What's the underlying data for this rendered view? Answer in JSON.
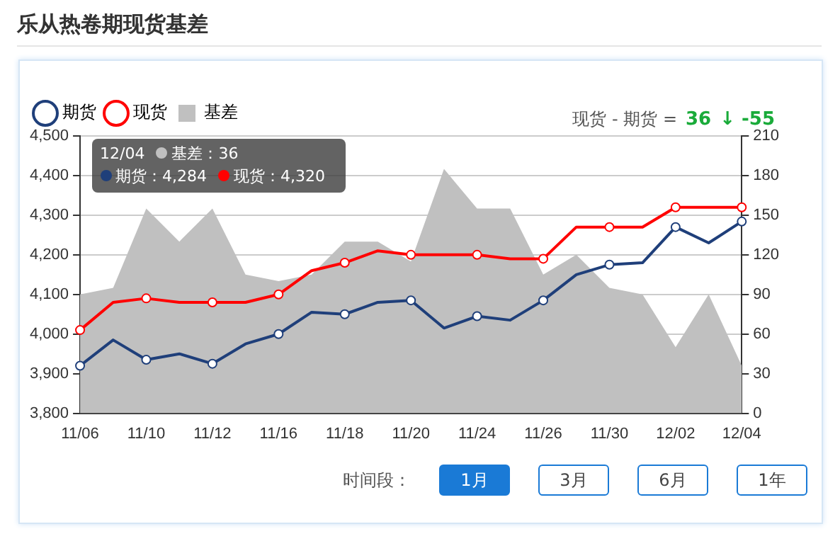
{
  "chart_data": {
    "type": "line",
    "title": "乐从热卷期现货基差",
    "categories": [
      "11/06",
      null,
      "11/10",
      null,
      "11/12",
      null,
      "11/16",
      null,
      "11/18",
      null,
      "11/20",
      null,
      "11/24",
      null,
      "11/26",
      null,
      "11/30",
      null,
      "12/02",
      null,
      "12/04"
    ],
    "series": [
      {
        "name": "期货",
        "color": "#1f3f7a",
        "values": [
          3920,
          3985,
          3935,
          3950,
          3925,
          3975,
          4000,
          4055,
          4050,
          4080,
          4085,
          4015,
          4045,
          4035,
          4085,
          4150,
          4175,
          4180,
          4270,
          4230,
          4284
        ]
      },
      {
        "name": "现货",
        "color": "#ff0000",
        "values": [
          4010,
          4080,
          4090,
          4080,
          4080,
          4080,
          4100,
          4160,
          4180,
          4210,
          4200,
          4200,
          4200,
          4190,
          4190,
          4270,
          4270,
          4270,
          4320,
          4320,
          4320
        ]
      },
      {
        "name": "基差",
        "type": "area",
        "axis": "y2",
        "color": "#c0c0c0",
        "marker": "none",
        "values": [
          90,
          95,
          155,
          130,
          155,
          105,
          100,
          105,
          130,
          130,
          115,
          185,
          155,
          155,
          105,
          120,
          95,
          90,
          50,
          90,
          36
        ]
      }
    ],
    "ylim": [
      3800,
      4500
    ],
    "yticks": [
      {
        "value": 3800,
        "label": "3,800"
      },
      {
        "value": 3900,
        "label": "3,900"
      },
      {
        "value": 4000,
        "label": "4,000"
      },
      {
        "value": 4100,
        "label": "4,100"
      },
      {
        "value": 4200,
        "label": "4,200"
      },
      {
        "value": 4300,
        "label": "4,300"
      },
      {
        "value": 4400,
        "label": "4,400"
      },
      {
        "value": 4500,
        "label": "4,500"
      }
    ],
    "y2lim": [
      0,
      210
    ],
    "y2ticks": [
      0,
      30,
      60,
      90,
      120,
      150,
      180,
      210
    ],
    "grid": "y",
    "legend": "top left",
    "marker": "circle",
    "line_style": "solid",
    "annotations": [
      "现货 - 期货 =",
      "36",
      "↓ -55",
      "12/04",
      "期货：4,284",
      "现货：4,320",
      "基差：36",
      "时间段：",
      "1月",
      "3月",
      "6月",
      "1年"
    ]
  }
}
